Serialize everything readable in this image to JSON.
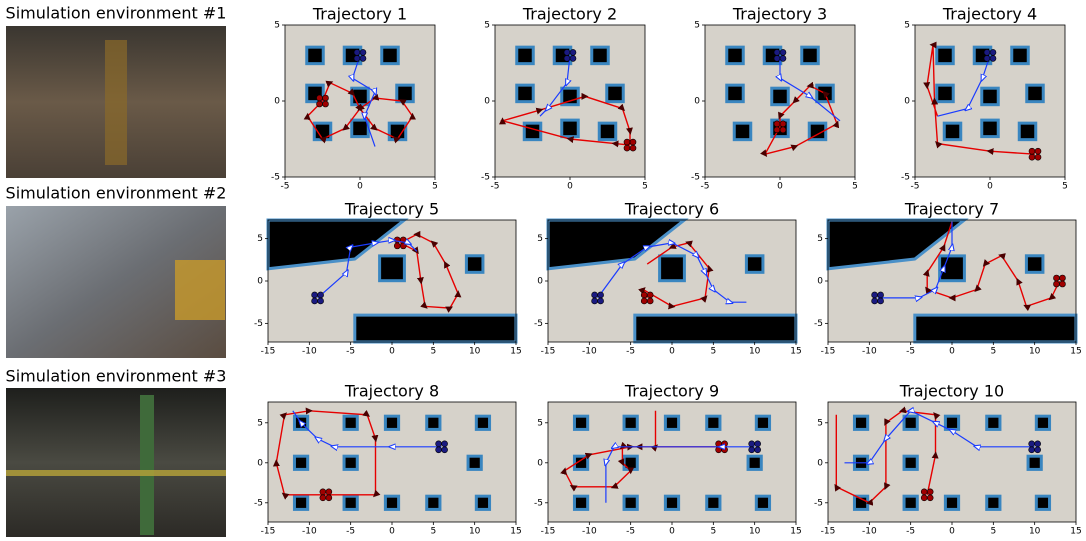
{
  "environments": [
    "Simulation environment #1",
    "Simulation environment #2",
    "Simulation environment #3"
  ],
  "chart_data": [
    {
      "type": "line",
      "title": "Trajectory 1",
      "xlim": [
        -5,
        5
      ],
      "ylim": [
        -5,
        5
      ],
      "xticks": [
        -5,
        0,
        5
      ],
      "yticks": [
        -5,
        0,
        5
      ],
      "series": [
        {
          "color": "#e60000",
          "x": [
            -2.5,
            -2,
            -0.5,
            0,
            1,
            2.5,
            3.5,
            2.8,
            1,
            0,
            -1,
            -2.5,
            -3.5,
            -2.5
          ],
          "values": [
            0,
            1.2,
            0.5,
            -0.5,
            -1.8,
            -2.5,
            -1,
            0,
            0.2,
            -0.5,
            -1.8,
            -2.5,
            -1,
            0
          ]
        },
        {
          "color": "#1a3cff",
          "x": [
            0,
            -0.5,
            1,
            0.3,
            1
          ],
          "values": [
            3,
            1.5,
            0.6,
            -1,
            -3
          ]
        }
      ]
    },
    {
      "type": "line",
      "title": "Trajectory 2",
      "xlim": [
        -5,
        5
      ],
      "ylim": [
        -5,
        5
      ],
      "xticks": [
        -5,
        0,
        5
      ],
      "yticks": [
        -5,
        0,
        5
      ],
      "series": [
        {
          "color": "#e60000",
          "x": [
            4,
            3,
            0,
            -4.5,
            -2,
            1,
            3.5,
            4,
            4
          ],
          "values": [
            -2.9,
            -2.8,
            -2.5,
            -1.3,
            -0.6,
            0.3,
            -0.5,
            -2,
            -2.9
          ]
        },
        {
          "color": "#1a3cff",
          "x": [
            0,
            -0.2,
            -1.5,
            -2
          ],
          "values": [
            3,
            1.2,
            -0.5,
            -1
          ]
        }
      ]
    },
    {
      "type": "line",
      "title": "Trajectory 3",
      "xlim": [
        -5,
        5
      ],
      "ylim": [
        -5,
        5
      ],
      "xticks": [
        -5,
        0,
        5
      ],
      "yticks": [
        -5,
        0,
        5
      ],
      "series": [
        {
          "color": "#e60000",
          "x": [
            0,
            -1,
            1,
            3.8,
            3,
            2,
            1,
            0,
            0
          ],
          "values": [
            -1.7,
            -3.5,
            -3,
            -1.5,
            0.5,
            1,
            0,
            -1,
            -1.7
          ]
        },
        {
          "color": "#1a3cff",
          "x": [
            0,
            0,
            2,
            4
          ],
          "values": [
            3,
            1.5,
            0.3,
            -1.3
          ]
        }
      ]
    },
    {
      "type": "line",
      "title": "Trajectory 4",
      "xlim": [
        -5,
        5
      ],
      "ylim": [
        -5,
        5
      ],
      "xticks": [
        -5,
        0,
        5
      ],
      "yticks": [
        -5,
        0,
        5
      ],
      "series": [
        {
          "color": "#e60000",
          "x": [
            3,
            0,
            -3.5,
            -3.7,
            -3.8,
            -4.2,
            -3.5
          ],
          "values": [
            -3.5,
            -3.3,
            -2.8,
            0,
            3.7,
            1,
            -1
          ]
        },
        {
          "color": "#1a3cff",
          "x": [
            0,
            -0.5,
            -1.5,
            -3.5
          ],
          "values": [
            3,
            1.5,
            -0.5,
            -1
          ]
        }
      ]
    },
    {
      "type": "line",
      "title": "Trajectory 5",
      "xlim": [
        -15,
        15
      ],
      "ylim": [
        -7.2,
        7.2
      ],
      "xticks": [
        -15,
        -10,
        -5,
        0,
        5,
        10,
        15
      ],
      "yticks": [
        -5,
        0,
        5
      ],
      "series": [
        {
          "color": "#e60000",
          "x": [
            1,
            3,
            3.5,
            4,
            7,
            8,
            6.5,
            5,
            3,
            1
          ],
          "values": [
            4.5,
            3.5,
            0,
            -3,
            -3.2,
            -1.5,
            2,
            4.5,
            5.5,
            4.5
          ]
        },
        {
          "color": "#1a3cff",
          "x": [
            -9,
            -5.5,
            -5,
            -2,
            0,
            2,
            3
          ],
          "values": [
            -2,
            1,
            4,
            4.5,
            4.8,
            4.5,
            3.5
          ]
        }
      ]
    },
    {
      "type": "line",
      "title": "Trajectory 6",
      "xlim": [
        -15,
        15
      ],
      "ylim": [
        -7.2,
        7.2
      ],
      "xticks": [
        -15,
        -10,
        -5,
        0,
        5,
        10,
        15
      ],
      "yticks": [
        -5,
        0,
        5
      ],
      "series": [
        {
          "color": "#e60000",
          "x": [
            -3,
            -3.5,
            0,
            4,
            4.5,
            2,
            0,
            -3
          ],
          "values": [
            -2,
            -1,
            -3,
            -2,
            1.5,
            4.5,
            4,
            2
          ]
        },
        {
          "color": "#1a3cff",
          "x": [
            -9,
            -6,
            -3,
            0,
            3,
            4,
            5,
            7,
            9
          ],
          "values": [
            -2,
            2,
            4,
            4.5,
            3,
            1,
            -1,
            -2.5,
            -2.5
          ]
        }
      ]
    },
    {
      "type": "line",
      "title": "Trajectory 7",
      "xlim": [
        -15,
        15
      ],
      "ylim": [
        -7.2,
        7.2
      ],
      "xticks": [
        -15,
        -10,
        -5,
        0,
        5,
        10,
        15
      ],
      "yticks": [
        -5,
        0,
        5
      ],
      "series": [
        {
          "color": "#e60000",
          "x": [
            13,
            12,
            9,
            8,
            6,
            4,
            3,
            0,
            -3,
            -3,
            -1,
            0
          ],
          "values": [
            0,
            -2,
            -3,
            0,
            3,
            2,
            -1,
            -2,
            -1,
            1,
            4,
            7
          ]
        },
        {
          "color": "#1a3cff",
          "x": [
            -9,
            -4,
            -2,
            -1,
            0,
            0
          ],
          "values": [
            -2,
            -2,
            -1,
            1.5,
            4,
            7
          ]
        }
      ]
    },
    {
      "type": "line",
      "title": "Trajectory 8",
      "xlim": [
        -15,
        15
      ],
      "ylim": [
        -7.4,
        7.6
      ],
      "xticks": [
        -15,
        -10,
        -5,
        0,
        5,
        10,
        15
      ],
      "yticks": [
        -5,
        0,
        5
      ],
      "series": [
        {
          "color": "#e60000",
          "x": [
            -8,
            -13,
            -14,
            -13,
            -10,
            -3,
            -2,
            -2,
            -8
          ],
          "values": [
            -4,
            -4,
            0,
            6,
            6.5,
            6,
            3,
            -4,
            -4
          ]
        },
        {
          "color": "#1a3cff",
          "x": [
            6,
            0,
            -7,
            -9,
            -11,
            -12
          ],
          "values": [
            2,
            2,
            2,
            3,
            5,
            6.5
          ]
        }
      ]
    },
    {
      "type": "line",
      "title": "Trajectory 9",
      "xlim": [
        -15,
        15
      ],
      "ylim": [
        -7.4,
        7.6
      ],
      "xticks": [
        -15,
        -10,
        -5,
        0,
        5,
        10,
        15
      ],
      "yticks": [
        -5,
        0,
        5
      ],
      "series": [
        {
          "color": "#e60000",
          "x": [
            6,
            -4,
            -6,
            -6,
            -5,
            -7,
            -12,
            -13,
            -10,
            -5,
            -2,
            -2
          ],
          "values": [
            2,
            2,
            2,
            0,
            -1,
            -3,
            -3,
            -1,
            1,
            2,
            2,
            6.5
          ]
        },
        {
          "color": "#1a3cff",
          "x": [
            10,
            6,
            -7,
            -8,
            -8
          ],
          "values": [
            2,
            2,
            2,
            0,
            -5
          ]
        }
      ]
    },
    {
      "type": "line",
      "title": "Trajectory 10",
      "xlim": [
        -15,
        15
      ],
      "ylim": [
        -7.4,
        7.6
      ],
      "xticks": [
        -15,
        -10,
        -5,
        0,
        5,
        10,
        15
      ],
      "yticks": [
        -5,
        0,
        5
      ],
      "series": [
        {
          "color": "#e60000",
          "x": [
            -3,
            -2,
            -2,
            -6,
            -8,
            -8,
            -10,
            -14,
            -14
          ],
          "values": [
            -4,
            1,
            6,
            6.5,
            5,
            -3,
            -5,
            -3,
            6
          ]
        },
        {
          "color": "#1a3cff",
          "x": [
            10,
            3,
            0,
            -2,
            -5,
            -8,
            -10,
            -13
          ],
          "values": [
            2,
            2,
            4,
            5,
            6.5,
            3,
            0,
            0
          ]
        }
      ]
    }
  ]
}
